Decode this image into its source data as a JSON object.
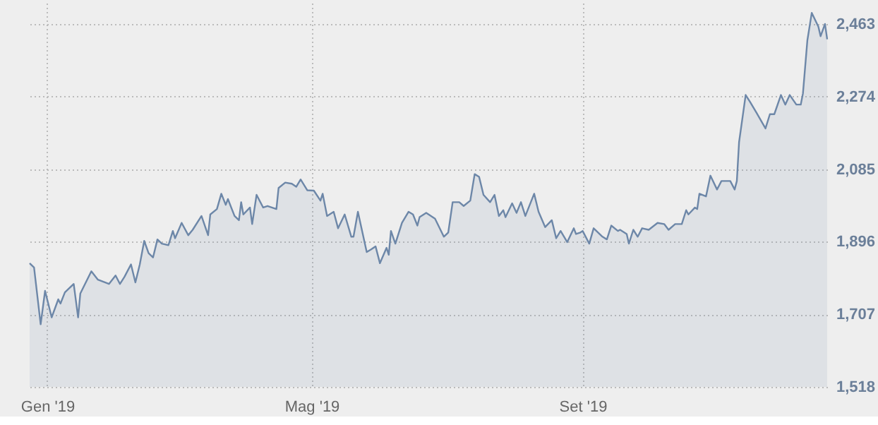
{
  "chart_data": {
    "type": "area",
    "x": [
      "2018-12-24",
      "2018-12-26",
      "2018-12-29",
      "2018-12-31",
      "2019-01-03",
      "2019-01-06",
      "2019-01-07",
      "2019-01-09",
      "2019-01-13",
      "2019-01-15",
      "2019-01-16",
      "2019-01-21",
      "2019-01-24",
      "2019-01-29",
      "2019-02-01",
      "2019-02-03",
      "2019-02-05",
      "2019-02-08",
      "2019-02-10",
      "2019-02-12",
      "2019-02-14",
      "2019-02-16",
      "2019-02-18",
      "2019-02-20",
      "2019-02-22",
      "2019-02-25",
      "2019-02-27",
      "2019-02-28",
      "2019-03-03",
      "2019-03-06",
      "2019-03-08",
      "2019-03-12",
      "2019-03-15",
      "2019-03-16",
      "2019-03-19",
      "2019-03-21",
      "2019-03-23",
      "2019-03-24",
      "2019-03-27",
      "2019-03-29",
      "2019-03-30",
      "2019-03-31",
      "2019-04-03",
      "2019-04-04",
      "2019-04-06",
      "2019-04-09",
      "2019-04-11",
      "2019-04-15",
      "2019-04-16",
      "2019-04-19",
      "2019-04-22",
      "2019-04-24",
      "2019-04-26",
      "2019-04-29",
      "2019-05-02",
      "2019-05-05",
      "2019-05-06",
      "2019-05-08",
      "2019-05-11",
      "2019-05-13",
      "2019-05-16",
      "2019-05-19",
      "2019-05-20",
      "2019-05-22",
      "2019-05-26",
      "2019-05-28",
      "2019-05-30",
      "2019-06-01",
      "2019-06-04",
      "2019-06-05",
      "2019-06-06",
      "2019-06-08",
      "2019-06-11",
      "2019-06-14",
      "2019-06-16",
      "2019-06-18",
      "2019-06-19",
      "2019-06-22",
      "2019-06-26",
      "2019-06-30",
      "2019-07-02",
      "2019-07-04",
      "2019-07-07",
      "2019-07-09",
      "2019-07-12",
      "2019-07-14",
      "2019-07-16",
      "2019-07-18",
      "2019-07-21",
      "2019-07-23",
      "2019-07-25",
      "2019-07-27",
      "2019-07-28",
      "2019-07-31",
      "2019-08-02",
      "2019-08-04",
      "2019-08-06",
      "2019-08-10",
      "2019-08-12",
      "2019-08-15",
      "2019-08-18",
      "2019-08-20",
      "2019-08-22",
      "2019-08-25",
      "2019-08-28",
      "2019-08-29",
      "2019-08-31",
      "2019-09-01",
      "2019-09-04",
      "2019-09-06",
      "2019-09-10",
      "2019-09-12",
      "2019-09-14",
      "2019-09-17",
      "2019-09-18",
      "2019-09-21",
      "2019-09-22",
      "2019-09-24",
      "2019-09-26",
      "2019-09-28",
      "2019-10-01",
      "2019-10-05",
      "2019-10-08",
      "2019-10-10",
      "2019-10-13",
      "2019-10-16",
      "2019-10-18",
      "2019-10-19",
      "2019-10-22",
      "2019-10-23",
      "2019-10-24",
      "2019-10-27",
      "2019-10-29",
      "2019-11-01",
      "2019-11-03",
      "2019-11-07",
      "2019-11-09",
      "2019-11-10",
      "2019-11-11",
      "2019-11-14",
      "2019-11-16",
      "2019-11-19",
      "2019-11-23",
      "2019-11-25",
      "2019-11-27",
      "2019-11-30",
      "2019-12-02",
      "2019-12-04",
      "2019-12-07",
      "2019-12-09",
      "2019-12-10",
      "2019-12-12",
      "2019-12-14",
      "2019-12-17",
      "2019-12-18",
      "2019-12-20",
      "2019-12-21"
    ],
    "series": [
      {
        "color": "#6d87a8",
        "values": [
          1840,
          1829,
          1681,
          1768,
          1699,
          1746,
          1735,
          1764,
          1786,
          1699,
          1761,
          1819,
          1797,
          1786,
          1808,
          1786,
          1804,
          1837,
          1790,
          1837,
          1898,
          1866,
          1855,
          1902,
          1891,
          1887,
          1924,
          1905,
          1945,
          1913,
          1927,
          1963,
          1913,
          1967,
          1981,
          2021,
          1992,
          2007,
          1963,
          1952,
          1999,
          1967,
          1985,
          1942,
          2018,
          1985,
          1989,
          1981,
          2036,
          2050,
          2047,
          2039,
          2058,
          2030,
          2029,
          2003,
          2021,
          1963,
          1974,
          1931,
          1967,
          1909,
          1909,
          1974,
          1869,
          1876,
          1884,
          1840,
          1880,
          1862,
          1924,
          1891,
          1945,
          1974,
          1967,
          1938,
          1960,
          1971,
          1956,
          1909,
          1920,
          1999,
          1999,
          1989,
          2003,
          2072,
          2065,
          2018,
          1999,
          2018,
          1963,
          1978,
          1960,
          1996,
          1971,
          1999,
          1963,
          2021,
          1974,
          1934,
          1952,
          1905,
          1924,
          1895,
          1931,
          1916,
          1920,
          1924,
          1891,
          1931,
          1909,
          1902,
          1938,
          1924,
          1927,
          1916,
          1891,
          1927,
          1909,
          1931,
          1927,
          1945,
          1942,
          1927,
          1942,
          1942,
          1978,
          1967,
          1985,
          1981,
          2021,
          2014,
          2068,
          2032,
          2054,
          2054,
          2032,
          2054,
          2155,
          2278,
          2260,
          2231,
          2191,
          2228,
          2228,
          2278,
          2253,
          2278,
          2253,
          2253,
          2282,
          2420,
          2492,
          2456,
          2431,
          2463,
          2423
        ]
      }
    ],
    "xlim": [
      "2018-12-24",
      "2019-12-21"
    ],
    "xticks": [
      {
        "value": "2019-01-01",
        "label": "Gen '19"
      },
      {
        "value": "2019-05-01",
        "label": "Mag '19"
      },
      {
        "value": "2019-09-01",
        "label": "Set '19"
      }
    ],
    "ylim": [
      1518,
      2518
    ],
    "yticks": [
      {
        "value": 1518,
        "label": "1,518"
      },
      {
        "value": 1707,
        "label": "1,707"
      },
      {
        "value": 1896,
        "label": "1,896"
      },
      {
        "value": 2085,
        "label": "2,085"
      },
      {
        "value": 2274,
        "label": "2,274"
      },
      {
        "value": 2463,
        "label": "2,463"
      }
    ],
    "grid": true
  }
}
